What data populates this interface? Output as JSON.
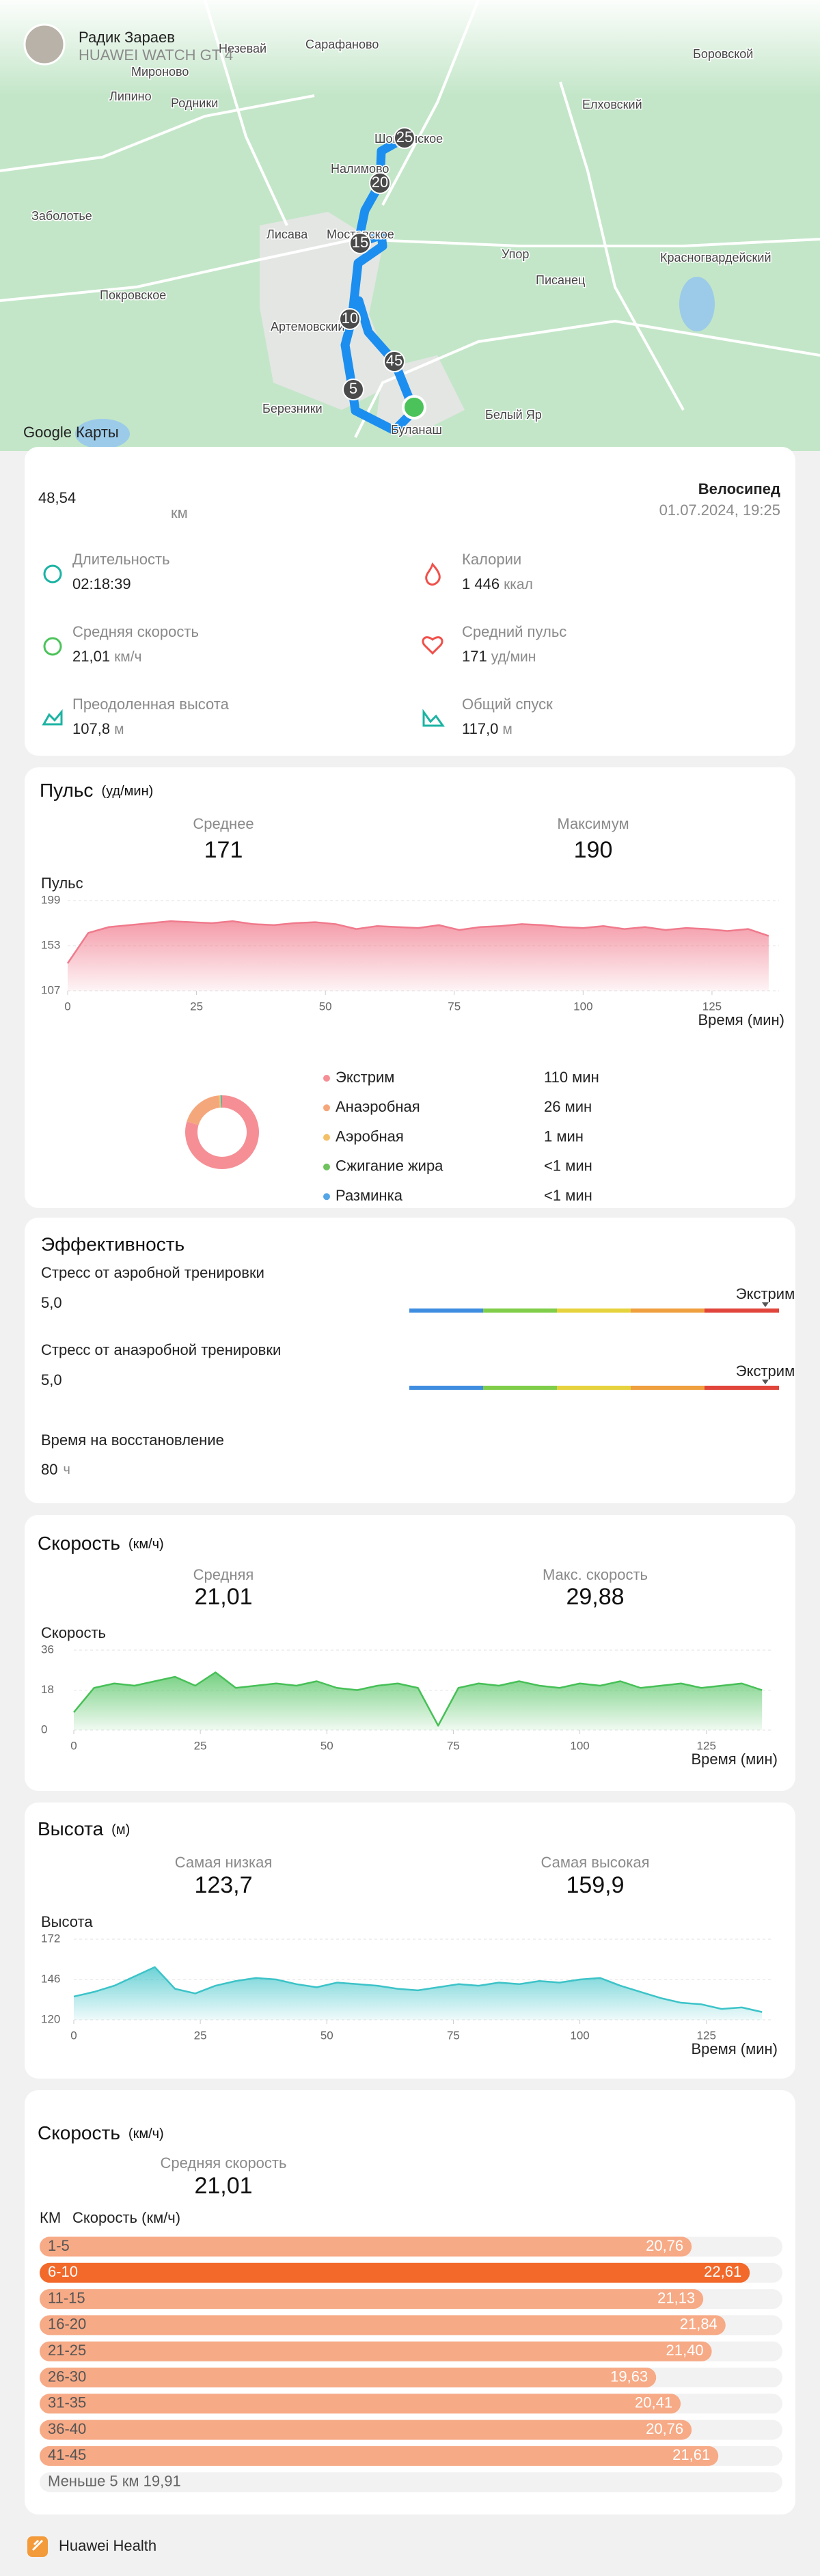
{
  "header": {
    "name": "Радик Зараев",
    "device": "HUAWEI WATCH GT 4"
  },
  "map": {
    "labels": [
      "Незевай",
      "Сарафаново",
      "Боровской",
      "Мироново",
      "Липино",
      "Родники",
      "Елховский",
      "Шогринское",
      "Налимово",
      "Заболотье",
      "Лисава",
      "Мостовское",
      "Упор",
      "Красногвардейский",
      "Писанец",
      "Покровское",
      "Артемовский",
      "Березники",
      "Буланаш",
      "Белый Яр"
    ],
    "markers": [
      "25",
      "20",
      "15",
      "10",
      "45",
      "5"
    ],
    "attribution": "Google Карты"
  },
  "summary": {
    "distance": "48,54",
    "distance_unit": "км",
    "activity": "Велосипед",
    "date": "01.07.2024, 19:25",
    "stats": [
      {
        "label": "Длительность",
        "value": "02:18:39"
      },
      {
        "label": "Средняя скорость",
        "value": "21,01",
        "unit": "км/ч"
      },
      {
        "label": "Преодоленная высота",
        "value": "107,8",
        "unit": "м"
      },
      {
        "label": "Калории",
        "value": "1 446",
        "unit": "ккал"
      },
      {
        "label": "Средний пульс",
        "value": "171",
        "unit": "уд/мин"
      },
      {
        "label": "Общий спуск",
        "value": "117,0",
        "unit": "м"
      }
    ]
  },
  "heart_rate": {
    "title": "Пульс",
    "unit": "(уд/мин)",
    "average_label": "Среднее",
    "average": "171",
    "max_label": "Максимум",
    "max": "190",
    "chart": {
      "type": "area",
      "y_label": "Пульс",
      "x_label": "Время (мин)",
      "color": "#f07a8c",
      "x": [
        0,
        4,
        8,
        12,
        16,
        20,
        24,
        28,
        32,
        36,
        40,
        44,
        48,
        52,
        56,
        60,
        64,
        68,
        72,
        76,
        80,
        84,
        88,
        92,
        96,
        100,
        104,
        108,
        112,
        116,
        120,
        124,
        128,
        132,
        136
      ],
      "values": [
        135,
        166,
        172,
        174,
        176,
        178,
        177,
        176,
        178,
        175,
        174,
        176,
        177,
        175,
        170,
        173,
        172,
        171,
        174,
        169,
        172,
        173,
        175,
        174,
        172,
        171,
        173,
        170,
        172,
        169,
        171,
        170,
        168,
        170,
        163
      ],
      "xlim": [
        0,
        138
      ],
      "ylim": [
        107,
        199
      ],
      "xticks": [
        0,
        25,
        50,
        75,
        100,
        125
      ],
      "yticks": [
        107,
        153,
        199
      ]
    },
    "zones": [
      {
        "name": "Экстрим",
        "value_label": "110 мин",
        "minutes": 110,
        "color": "#f58f95"
      },
      {
        "name": "Анаэробная",
        "value_label": "26 мин",
        "minutes": 26,
        "color": "#f5a77c"
      },
      {
        "name": "Аэробная",
        "value_label": "1 мин",
        "minutes": 1,
        "color": "#f4c067"
      },
      {
        "name": "Сжигание жира",
        "value_label": "<1 мин",
        "minutes": 0.5,
        "color": "#6fc25d"
      },
      {
        "name": "Разминка",
        "value_label": "<1 мин",
        "minutes": 0.5,
        "color": "#54a6e6"
      }
    ]
  },
  "effectiveness": {
    "title": "Эффективность",
    "items": [
      {
        "label": "Стресс от аэробной тренировки",
        "value": "5,0",
        "level": "Экстрим"
      },
      {
        "label": "Стресс от анаэробной тренировки",
        "value": "5,0",
        "level": "Экстрим"
      }
    ],
    "recovery_label": "Время на восстановление",
    "recovery": "80",
    "recovery_unit": "ч"
  },
  "speed": {
    "title": "Скорость",
    "unit": "(км/ч)",
    "average_label": "Средняя",
    "average": "21,01",
    "max_label": "Макс. скорость",
    "max": "29,88",
    "chart": {
      "type": "area",
      "y_label": "Скорость",
      "x_label": "Время (мин)",
      "color": "#47c057",
      "x": [
        0,
        4,
        8,
        12,
        16,
        20,
        24,
        28,
        32,
        36,
        40,
        44,
        48,
        52,
        56,
        60,
        64,
        68,
        72,
        76,
        80,
        84,
        88,
        92,
        96,
        100,
        104,
        108,
        112,
        116,
        120,
        124,
        128,
        132,
        136
      ],
      "values": [
        8,
        19,
        21,
        20,
        22,
        24,
        20,
        26,
        19,
        20,
        21,
        20,
        22,
        19,
        18,
        20,
        21,
        19,
        2,
        19,
        21,
        20,
        22,
        20,
        19,
        21,
        20,
        22,
        19,
        20,
        21,
        19,
        20,
        21,
        18
      ],
      "xlim": [
        0,
        138
      ],
      "ylim": [
        0,
        36
      ],
      "xticks": [
        0,
        25,
        50,
        75,
        100,
        125
      ],
      "yticks": [
        0,
        18,
        36
      ]
    }
  },
  "altitude": {
    "title": "Высота",
    "unit": "(м)",
    "min_label": "Самая низкая",
    "min": "123,7",
    "max_label": "Самая высокая",
    "max": "159,9",
    "chart": {
      "type": "area",
      "y_label": "Высота",
      "x_label": "Время (мин)",
      "color": "#3cc3c8",
      "x": [
        0,
        4,
        8,
        12,
        16,
        20,
        24,
        28,
        32,
        36,
        40,
        44,
        48,
        52,
        56,
        60,
        64,
        68,
        72,
        76,
        80,
        84,
        88,
        92,
        96,
        100,
        104,
        108,
        112,
        116,
        120,
        124,
        128,
        132,
        136
      ],
      "values": [
        135,
        138,
        142,
        148,
        154,
        140,
        137,
        142,
        145,
        147,
        146,
        143,
        141,
        144,
        143,
        142,
        140,
        139,
        141,
        143,
        142,
        144,
        143,
        145,
        144,
        146,
        147,
        142,
        138,
        134,
        131,
        130,
        127,
        128,
        125
      ],
      "xlim": [
        0,
        138
      ],
      "ylim": [
        120,
        172
      ],
      "xticks": [
        0,
        25,
        50,
        75,
        100,
        125
      ],
      "yticks": [
        120,
        146,
        172
      ]
    }
  },
  "speed_per_km": {
    "title": "Скорость",
    "unit": "(км/ч)",
    "average_label": "Средняя скорость",
    "average": "21,01",
    "col_km": "КМ",
    "col_speed": "Скорость (км/ч)",
    "chart": {
      "type": "bar",
      "categories": [
        "1-5",
        "6-10",
        "11-15",
        "16-20",
        "21-25",
        "26-30",
        "31-35",
        "36-40",
        "41-45"
      ],
      "values": [
        20.76,
        22.61,
        21.13,
        21.84,
        21.4,
        19.63,
        20.41,
        20.76,
        21.61
      ],
      "value_labels": [
        "20,76",
        "22,61",
        "21,13",
        "21,84",
        "21,40",
        "19,63",
        "20,41",
        "20,76",
        "21,61"
      ],
      "xlim": [
        0,
        23.65
      ],
      "color": "#f7aa86",
      "highlight_color": "#f2692a"
    },
    "remainder": "Меньше 5 км 19,91"
  },
  "footer": {
    "app": "Huawei Health"
  }
}
